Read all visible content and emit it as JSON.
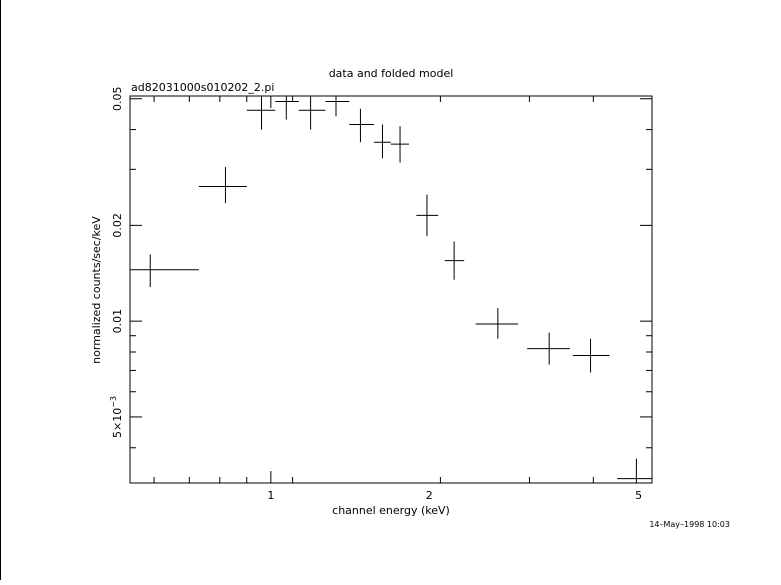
{
  "chart_data": {
    "type": "scatter",
    "title": "data and folded model",
    "subtitle": "ad82031000s010202_2.pi",
    "xlabel": "channel energy (keV)",
    "ylabel": "normalized counts/sec/keV",
    "x_scale": "log",
    "y_scale": "log",
    "xlim": [
      0.54,
      5.3
    ],
    "ylim": [
      0.0031,
      0.051
    ],
    "x_ticks": [
      {
        "value": 1,
        "label": "1"
      },
      {
        "value": 2,
        "label": "2"
      },
      {
        "value": 5,
        "label": "5"
      }
    ],
    "y_ticks": [
      {
        "value": 0.005,
        "label_base": "5×10",
        "label_exp": "−3"
      },
      {
        "value": 0.01,
        "label": "0.01"
      },
      {
        "value": 0.02,
        "label": "0.02"
      },
      {
        "value": 0.05,
        "label": "0.05"
      }
    ],
    "grid": false,
    "series": [
      {
        "points": [
          {
            "x": 0.59,
            "xlo": 0.54,
            "xhi": 0.73,
            "y": 0.0145,
            "ylo": 0.0128,
            "yhi": 0.0162
          },
          {
            "x": 0.82,
            "xlo": 0.73,
            "xhi": 0.9,
            "y": 0.0265,
            "ylo": 0.0235,
            "yhi": 0.0305
          },
          {
            "x": 0.96,
            "xlo": 0.9,
            "xhi": 1.02,
            "y": 0.046,
            "ylo": 0.04,
            "yhi": 0.051
          },
          {
            "x": 1.07,
            "xlo": 1.02,
            "xhi": 1.13,
            "y": 0.049,
            "ylo": 0.043,
            "yhi": 0.051
          },
          {
            "x": 1.19,
            "xlo": 1.13,
            "xhi": 1.27,
            "y": 0.046,
            "ylo": 0.04,
            "yhi": 0.051
          },
          {
            "x": 1.33,
            "xlo": 1.27,
            "xhi": 1.41,
            "y": 0.049,
            "ylo": 0.044,
            "yhi": 0.051
          },
          {
            "x": 1.48,
            "xlo": 1.41,
            "xhi": 1.57,
            "y": 0.0415,
            "ylo": 0.0365,
            "yhi": 0.0465
          },
          {
            "x": 1.63,
            "xlo": 1.57,
            "xhi": 1.69,
            "y": 0.0365,
            "ylo": 0.0325,
            "yhi": 0.0415
          },
          {
            "x": 1.76,
            "xlo": 1.69,
            "xhi": 1.83,
            "y": 0.036,
            "ylo": 0.0315,
            "yhi": 0.041
          },
          {
            "x": 1.98,
            "xlo": 1.89,
            "xhi": 2.08,
            "y": 0.0215,
            "ylo": 0.0185,
            "yhi": 0.025
          },
          {
            "x": 2.23,
            "xlo": 2.14,
            "xhi": 2.33,
            "y": 0.0155,
            "ylo": 0.0135,
            "yhi": 0.0178
          },
          {
            "x": 2.7,
            "xlo": 2.45,
            "xhi": 2.95,
            "y": 0.0098,
            "ylo": 0.0088,
            "yhi": 0.011
          },
          {
            "x": 3.38,
            "xlo": 3.07,
            "xhi": 3.7,
            "y": 0.0082,
            "ylo": 0.0073,
            "yhi": 0.0092
          },
          {
            "x": 4.05,
            "xlo": 3.75,
            "xhi": 4.4,
            "y": 0.0078,
            "ylo": 0.0069,
            "yhi": 0.0088
          },
          {
            "x": 4.95,
            "xlo": 4.55,
            "xhi": 5.3,
            "y": 0.0032,
            "ylo": 0.0028,
            "yhi": 0.0037
          }
        ]
      }
    ]
  },
  "footer": {
    "timestamp": "14–May–1998 10:03"
  }
}
